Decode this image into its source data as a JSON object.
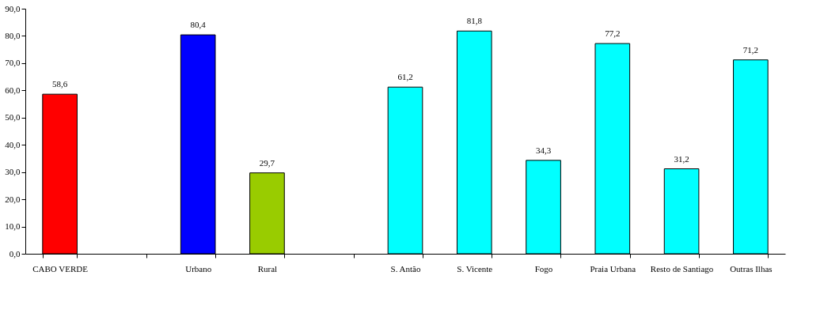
{
  "chart_data": {
    "type": "bar",
    "categories": [
      "CABO VERDE",
      null,
      "Urbano",
      "Rural",
      null,
      "S. Antão",
      "S. Vicente",
      "Fogo",
      "Praia Urbana",
      "Resto de Santiago",
      "Outras Ilhas"
    ],
    "values": [
      58.6,
      null,
      80.4,
      29.7,
      null,
      61.2,
      81.8,
      34.3,
      77.2,
      31.2,
      71.2
    ],
    "colors": [
      "#ff0000",
      null,
      "#0000ff",
      "#99cc00",
      null,
      "#00ffff",
      "#00ffff",
      "#00ffff",
      "#00ffff",
      "#00ffff",
      "#00ffff"
    ],
    "ylim": [
      0,
      90
    ],
    "yticks": [
      {
        "value": 0,
        "label": "0,0"
      },
      {
        "value": 10,
        "label": "10,0"
      },
      {
        "value": 20,
        "label": "20,0"
      },
      {
        "value": 30,
        "label": "30,0"
      },
      {
        "value": 40,
        "label": "40,0"
      },
      {
        "value": 50,
        "label": "50,0"
      },
      {
        "value": 60,
        "label": "60,0"
      },
      {
        "value": 70,
        "label": "70,0"
      },
      {
        "value": 80,
        "label": "80,0"
      },
      {
        "value": 90,
        "label": "90,0"
      }
    ],
    "value_labels": [
      "58,6",
      null,
      "80,4",
      "29,7",
      null,
      "61,2",
      "81,8",
      "34,3",
      "77,2",
      "31,2",
      "71,2"
    ],
    "grid": false
  }
}
